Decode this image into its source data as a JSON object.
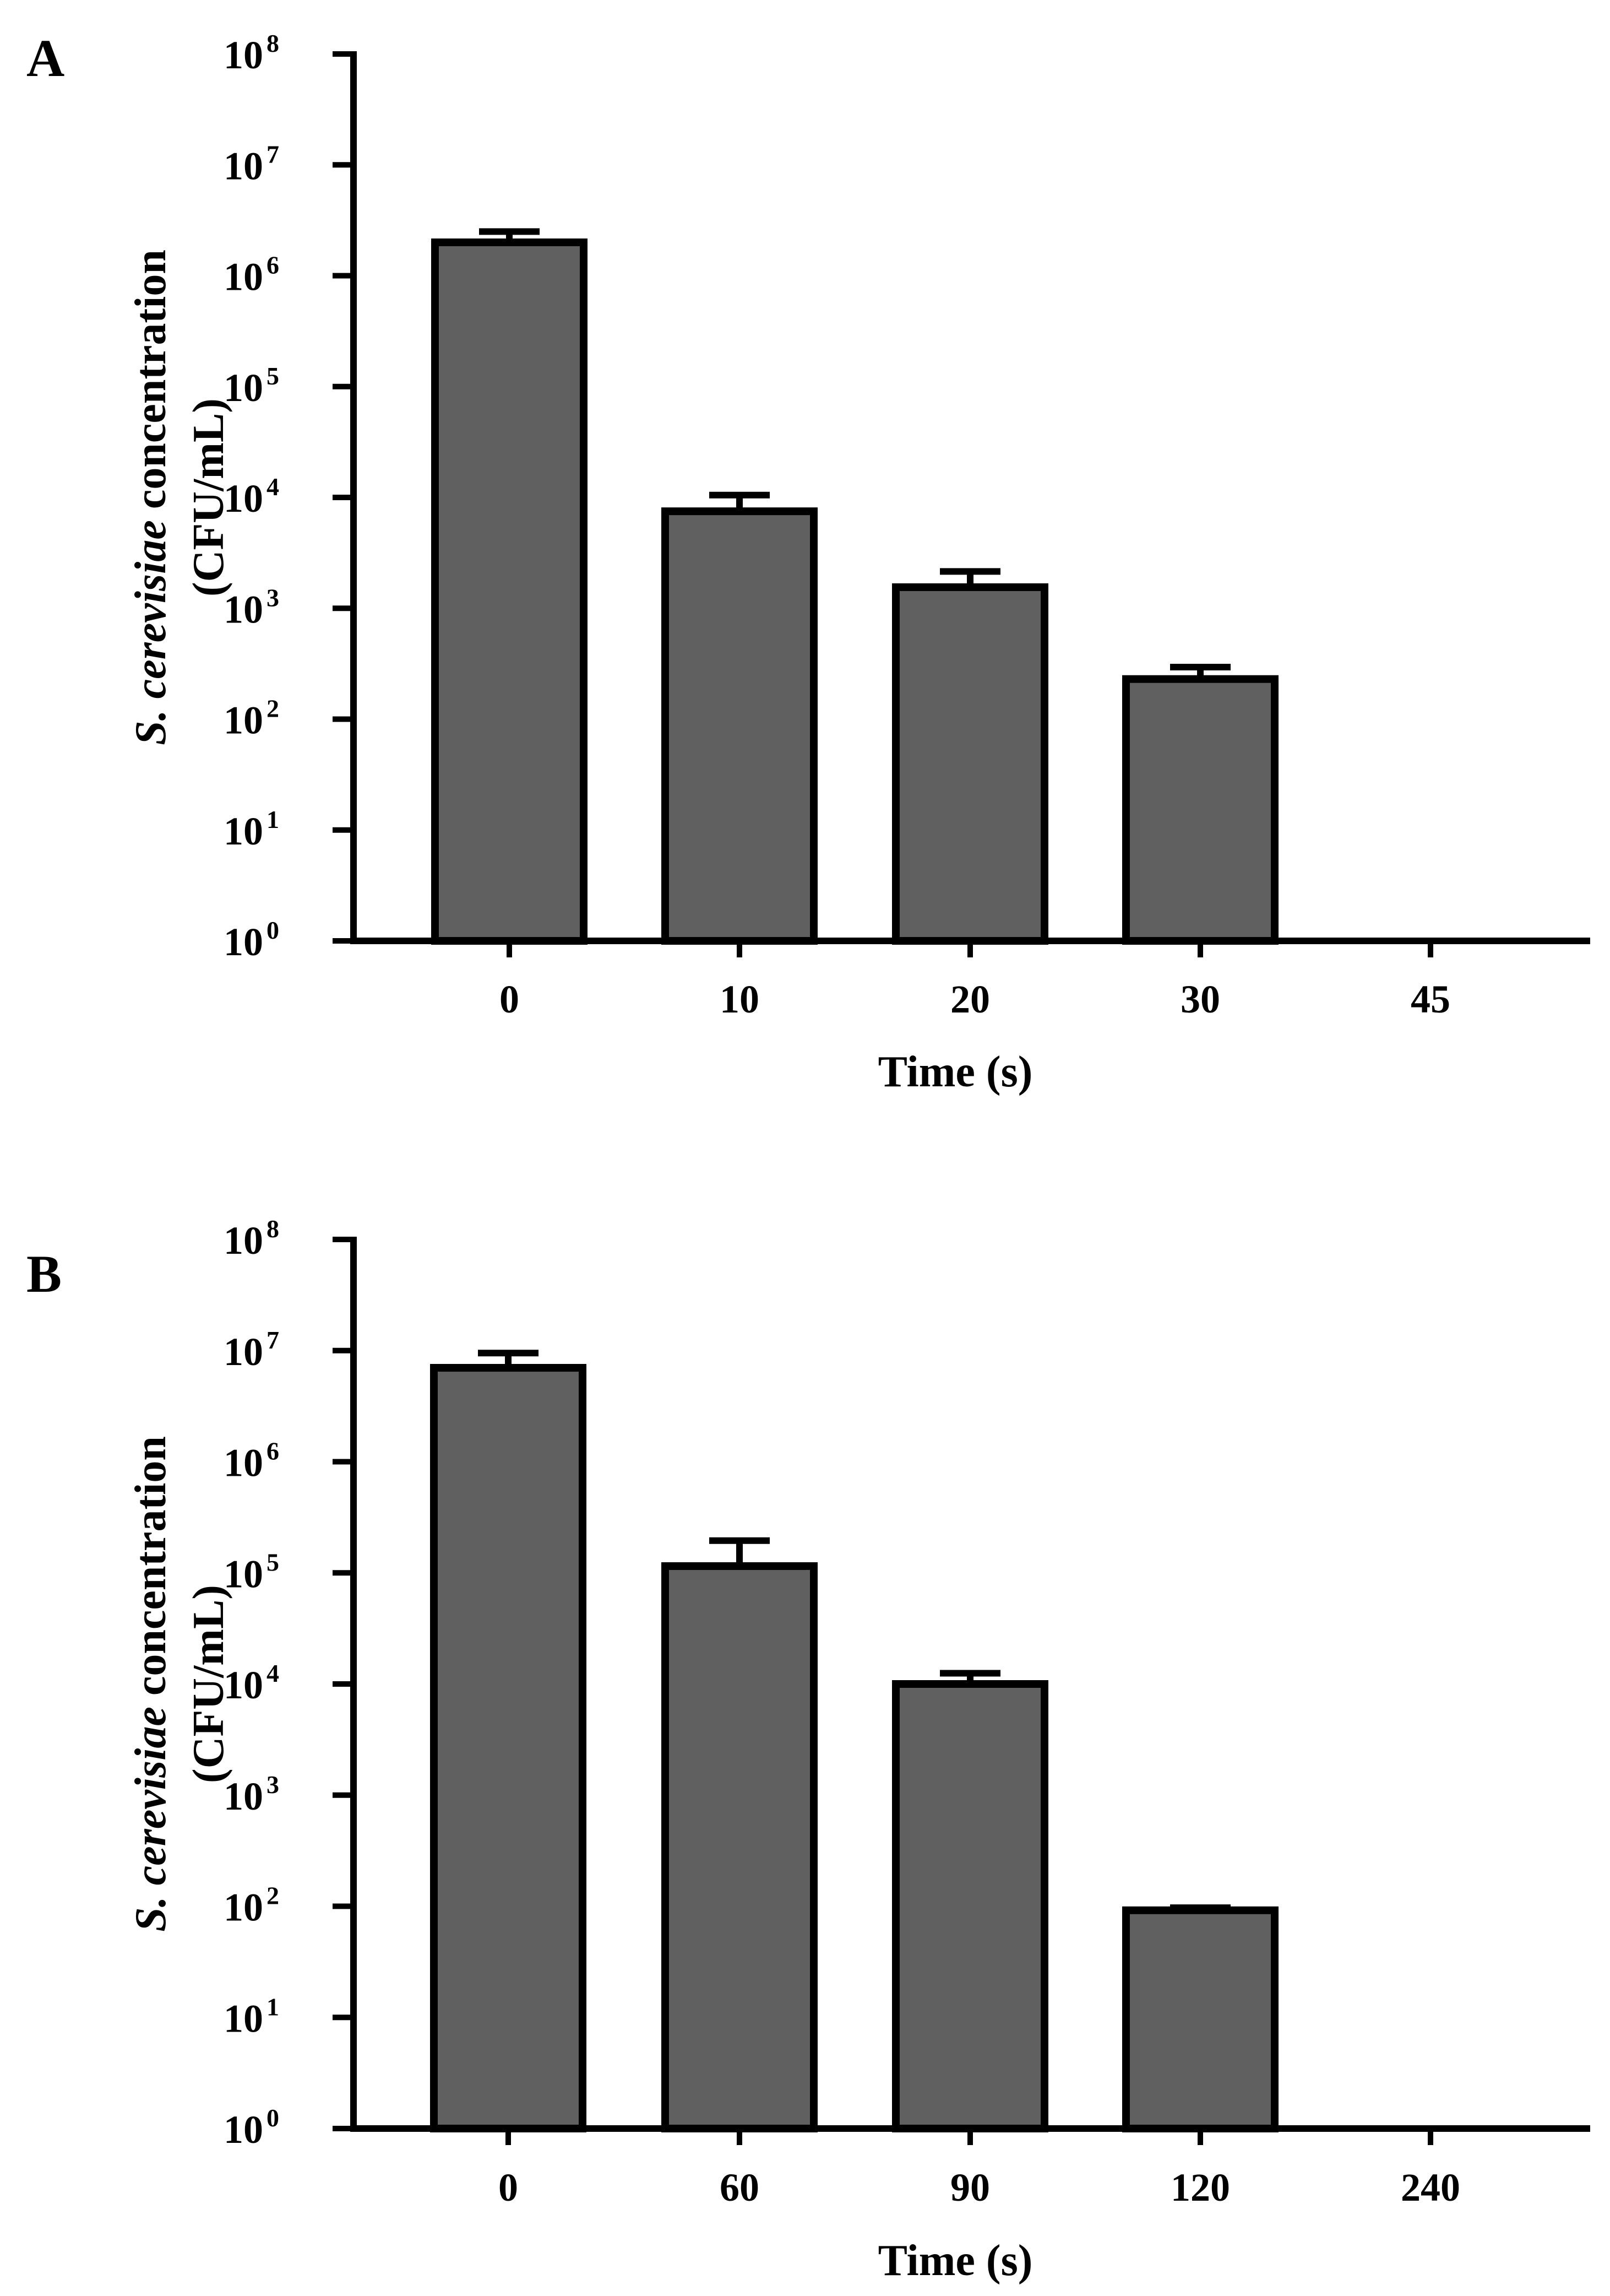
{
  "chart_data": [
    {
      "panel": "A",
      "type": "bar",
      "scale": "log10",
      "ylim": [
        1,
        100000000
      ],
      "xlabel": "Time (s)",
      "ylabel_species": "S. cerevisiae",
      "ylabel_rest": "concentration",
      "ylabel_unit": "(CFU/mL)",
      "ytick_base": "10",
      "ytick_exponents": [
        "0",
        "1",
        "2",
        "3",
        "4",
        "5",
        "6",
        "7",
        "8"
      ],
      "categories": [
        "0",
        "10",
        "20",
        "30",
        "45"
      ],
      "values": [
        2000000,
        7500,
        1550,
        230,
        0
      ],
      "error_upper": [
        2500000,
        10500,
        2150,
        295,
        0
      ],
      "bar_color": "#606060",
      "edge_color": "#000000"
    },
    {
      "panel": "B",
      "type": "bar",
      "scale": "log10",
      "ylim": [
        1,
        100000000
      ],
      "xlabel": "Time (s)",
      "ylabel_species": "S. cerevisiae",
      "ylabel_rest": "concentration",
      "ylabel_unit": "(CFU/mL)",
      "ytick_base": "10",
      "ytick_exponents": [
        "0",
        "1",
        "2",
        "3",
        "4",
        "5",
        "6",
        "7",
        "8"
      ],
      "categories": [
        "0",
        "60",
        "90",
        "120",
        "240"
      ],
      "values": [
        7000000,
        115000,
        10000,
        92,
        0
      ],
      "error_upper": [
        9500000,
        195000,
        12500,
        97,
        0
      ],
      "bar_color": "#606060",
      "edge_color": "#000000"
    }
  ]
}
